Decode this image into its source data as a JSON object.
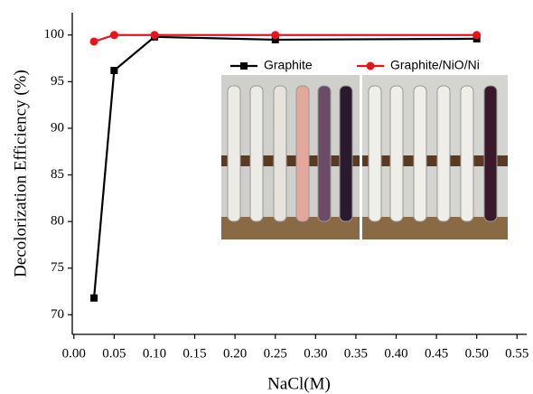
{
  "chart_data": {
    "type": "line",
    "x_label": "NaCl(M)",
    "y_label": "Decolorization Efficiency (%)",
    "x": [
      0.025,
      0.05,
      0.1,
      0.25,
      0.5
    ],
    "series": [
      {
        "name": "Graphite",
        "color": "#000000",
        "marker": "square",
        "values": [
          71.8,
          96.2,
          99.8,
          99.5,
          99.6
        ]
      },
      {
        "name": "Graphite/NiO/Ni",
        "color": "#e8141b",
        "marker": "circle",
        "values": [
          99.3,
          100,
          100,
          100,
          100
        ]
      }
    ],
    "xlim": [
      -0.002,
      0.562
    ],
    "xticks": [
      {
        "value": 0,
        "label": "0.00"
      },
      {
        "value": 0.05,
        "label": "0.05"
      },
      {
        "value": 0.1,
        "label": "0.10"
      },
      {
        "value": 0.15,
        "label": "0.15"
      },
      {
        "value": 0.2,
        "label": "0.20"
      },
      {
        "value": 0.25,
        "label": "0.25"
      },
      {
        "value": 0.3,
        "label": "0.30"
      },
      {
        "value": 0.35,
        "label": "0.35"
      },
      {
        "value": 0.4,
        "label": "0.40"
      },
      {
        "value": 0.45,
        "label": "0.45"
      },
      {
        "value": 0.5,
        "label": "0.50"
      },
      {
        "value": 0.55,
        "label": "0.55"
      }
    ],
    "ylim": [
      67.9,
      102.4
    ],
    "yticks": [
      70,
      75,
      80,
      85,
      90,
      95,
      100
    ]
  }
}
